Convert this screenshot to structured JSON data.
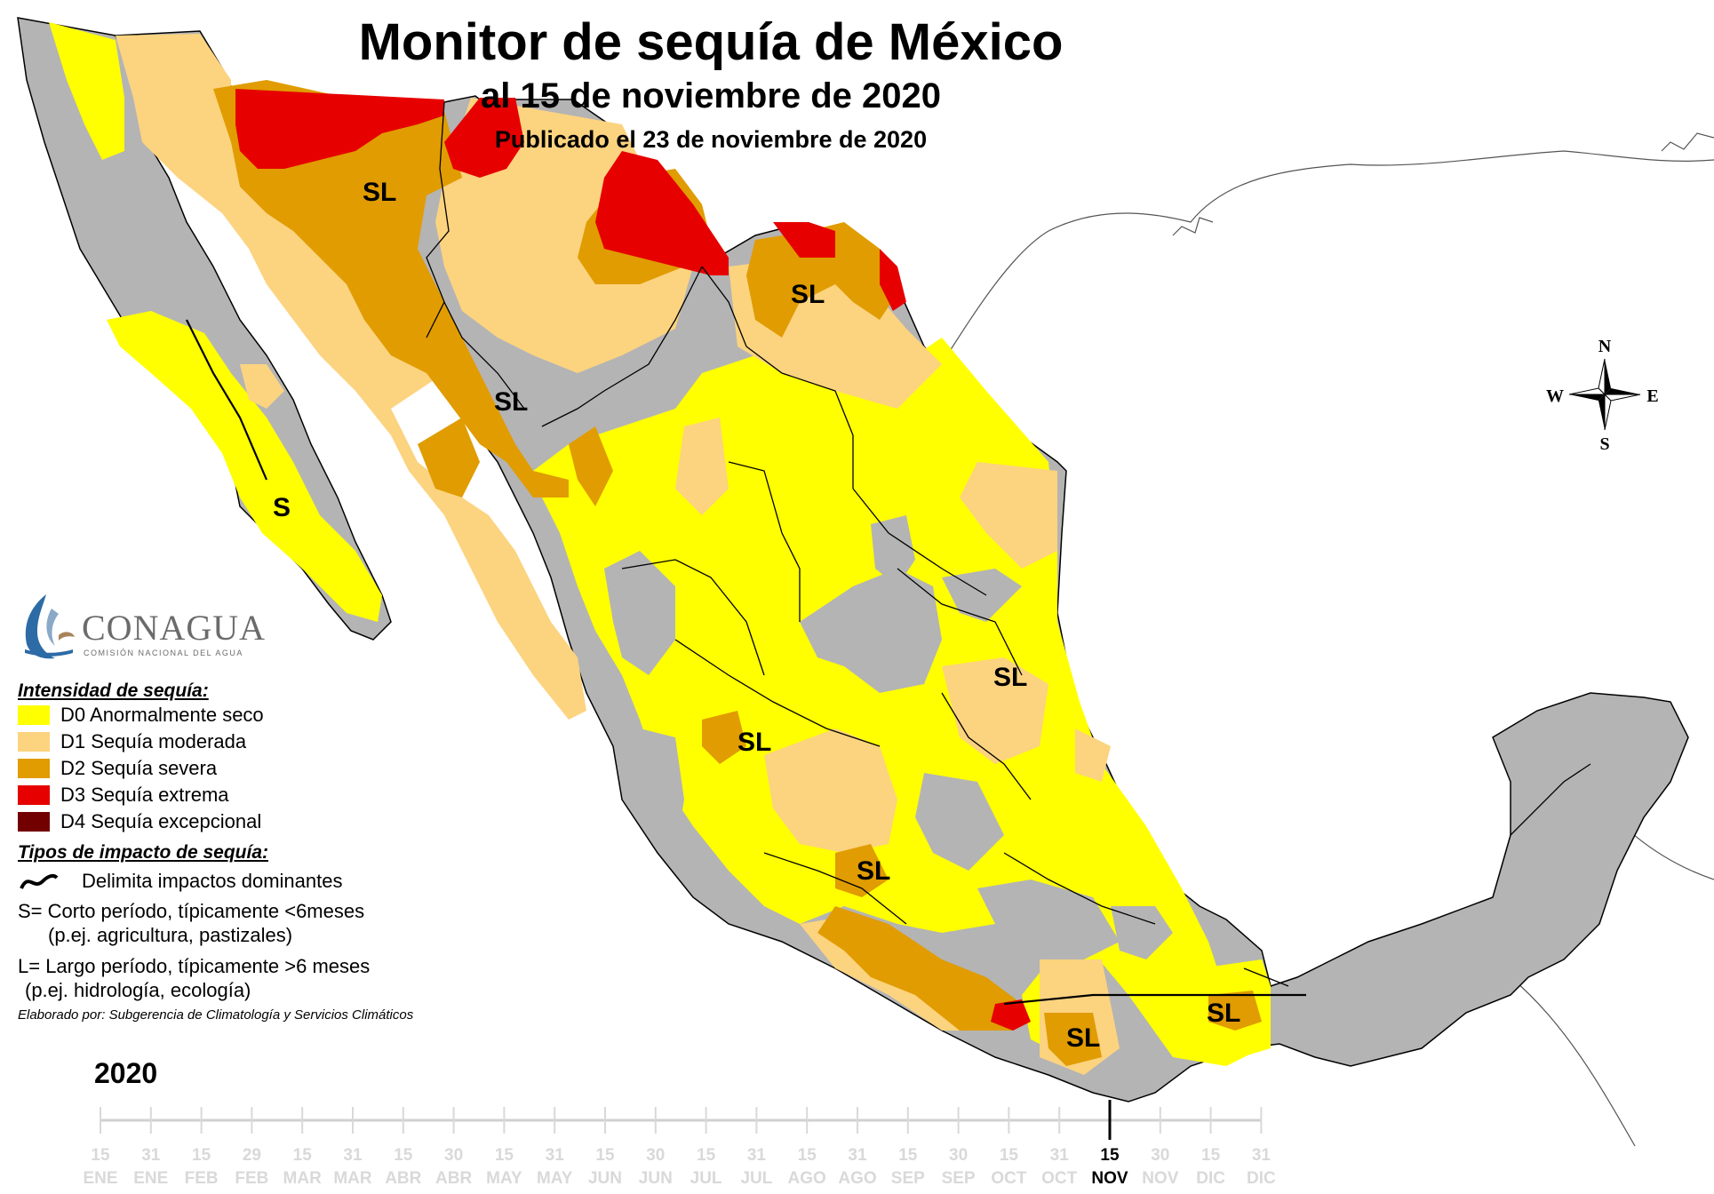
{
  "title": "Monitor de sequía de México",
  "subtitle": "al 15 de noviembre de 2020",
  "published": "Publicado el 23 de noviembre de 2020",
  "compass": {
    "n": "N",
    "s": "S",
    "e": "E",
    "w": "W"
  },
  "logo": {
    "name": "CONAGUA",
    "sub": "COMISIÓN NACIONAL DEL AGUA"
  },
  "legend": {
    "heading": "Intensidad de sequía:",
    "items": [
      {
        "label": "D0 Anormalmente seco",
        "color": "#ffff00"
      },
      {
        "label": "D1 Sequía moderada",
        "color": "#fcd37f"
      },
      {
        "label": "D2 Sequía severa",
        "color": "#e09c00"
      },
      {
        "label": "D3 Sequía extrema",
        "color": "#e60000"
      },
      {
        "label": "D4 Sequía excepcional",
        "color": "#730000"
      }
    ]
  },
  "impacts": {
    "heading": "Tipos de impacto de sequía:",
    "line_label": "Delimita impactos dominantes",
    "short": "S= Corto período, típicamente <6meses",
    "short_ex": "(p.ej. agricultura, pastizales)",
    "long": "L= Largo período, típicamente >6 meses",
    "long_ex": "(p.ej. hidrología, ecología)",
    "credit": "Elaborado por: Subgerencia de Climatología y Servicios Climáticos"
  },
  "year": "2020",
  "timeline": {
    "days": [
      "15",
      "31",
      "15",
      "29",
      "15",
      "31",
      "15",
      "30",
      "15",
      "31",
      "15",
      "30",
      "15",
      "31",
      "15",
      "31",
      "15",
      "30",
      "15",
      "31",
      "15",
      "30",
      "15",
      "31"
    ],
    "months": [
      "ENE",
      "ENE",
      "FEB",
      "FEB",
      "MAR",
      "MAR",
      "ABR",
      "ABR",
      "MAY",
      "MAY",
      "JUN",
      "JUN",
      "JUL",
      "JUL",
      "AGO",
      "AGO",
      "SEP",
      "SEP",
      "OCT",
      "OCT",
      "NOV",
      "NOV",
      "DIC",
      "DIC"
    ],
    "current_index": 20
  },
  "labels": [
    "SL",
    "SL",
    "SL",
    "S",
    "SL",
    "SL",
    "SL",
    "SL",
    "SL",
    "SL"
  ],
  "colors": {
    "no_drought": "#b4b4b4",
    "water": "#ffffff",
    "border": "#000000"
  }
}
